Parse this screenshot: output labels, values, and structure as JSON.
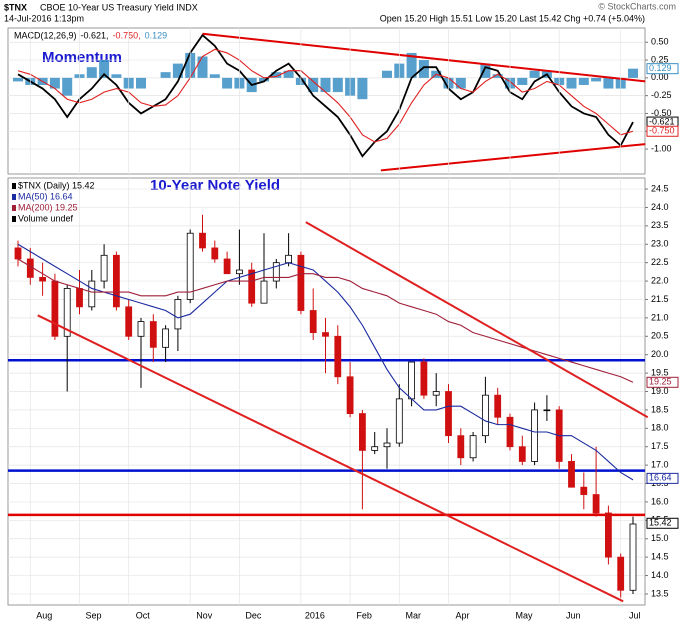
{
  "header": {
    "symbol": "$TNX",
    "name": "CBOE 10-Year US Treasury Yield INDX",
    "date": "14-Jul-2016 1:13pm",
    "quote": "Open 15.20 High 15.51 Low 15.20 Last 15.42 Chg +0.74 (+5.04%)",
    "credit": "© StockCharts.com"
  },
  "chart_data": [
    {
      "type": "macd",
      "annotation": "Momentum",
      "legend_text": [
        "MACD(12,26,9)",
        "-0.621,",
        "-0.750,",
        "0.129"
      ],
      "ylim": [
        -1.35,
        0.7
      ],
      "yticks": [
        {
          "value": 0.5,
          "label": "0.50"
        },
        {
          "value": 0.25,
          "label": "0.25"
        },
        {
          "value": 0,
          "label": "0.00"
        },
        {
          "value": -0.25,
          "label": "-0.25"
        },
        {
          "value": -0.5,
          "label": "-0.50"
        },
        {
          "value": -0.75,
          "label": "-0.75"
        },
        {
          "value": -1,
          "label": "-1.00"
        }
      ],
      "grid": true,
      "series": [
        {
          "kind": "line",
          "color": "#000000",
          "values": [
            0.05,
            -0.05,
            -0.15,
            -0.3,
            -0.55,
            -0.3,
            -0.15,
            0.05,
            -0.1,
            -0.35,
            -0.5,
            -0.4,
            -0.3,
            -0.05,
            0.35,
            0.6,
            0.45,
            0.2,
            0.1,
            -0.1,
            -0.05,
            0.1,
            0.2,
            0.0,
            -0.25,
            -0.4,
            -0.55,
            -0.8,
            -1.1,
            -0.9,
            -0.75,
            -0.45,
            0.0,
            0.15,
            0.15,
            -0.15,
            -0.3,
            -0.2,
            0.15,
            0.1,
            -0.2,
            -0.3,
            -0.05,
            0.05,
            -0.2,
            -0.4,
            -0.5,
            -0.55,
            -0.8,
            -0.95,
            -0.621
          ]
        },
        {
          "kind": "line",
          "color": "#e02020",
          "values": [
            0.1,
            0.05,
            -0.05,
            -0.15,
            -0.3,
            -0.35,
            -0.3,
            -0.2,
            -0.15,
            -0.2,
            -0.35,
            -0.4,
            -0.38,
            -0.25,
            0.0,
            0.3,
            0.4,
            0.35,
            0.25,
            0.1,
            0.0,
            0.02,
            0.1,
            0.1,
            -0.05,
            -0.2,
            -0.35,
            -0.55,
            -0.8,
            -0.9,
            -0.85,
            -0.65,
            -0.35,
            -0.1,
            0.05,
            0.0,
            -0.15,
            -0.2,
            -0.05,
            0.05,
            -0.05,
            -0.2,
            -0.15,
            -0.05,
            -0.1,
            -0.25,
            -0.4,
            -0.5,
            -0.65,
            -0.8,
            -0.75
          ]
        },
        {
          "kind": "histogram",
          "color": "#3a8fc4",
          "values": [
            -0.05,
            -0.1,
            -0.1,
            -0.15,
            -0.25,
            0.05,
            0.15,
            0.25,
            0.05,
            -0.15,
            -0.15,
            0.0,
            0.08,
            0.2,
            0.35,
            0.3,
            0.05,
            -0.15,
            -0.15,
            -0.2,
            -0.05,
            0.08,
            0.1,
            -0.1,
            -0.2,
            -0.2,
            -0.2,
            -0.25,
            -0.3,
            0.0,
            0.1,
            0.2,
            0.35,
            0.25,
            0.1,
            -0.15,
            -0.15,
            0.0,
            0.2,
            0.05,
            -0.15,
            -0.1,
            0.1,
            0.1,
            -0.1,
            -0.15,
            -0.1,
            -0.05,
            -0.15,
            -0.15,
            0.129
          ]
        }
      ],
      "trendlines": [
        {
          "x": [
            15,
            51
          ],
          "y": [
            0.62,
            -0.05
          ],
          "color": "#e00000"
        },
        {
          "x": [
            29.5,
            51
          ],
          "y": [
            -1.3,
            -0.93
          ],
          "color": "#e00000"
        }
      ],
      "tags": [
        {
          "label": "0.129",
          "value": 0.129,
          "color": "#3a8fc4"
        },
        {
          "label": "-0.621",
          "value": -0.621,
          "color": "#000000"
        },
        {
          "label": "-0.750",
          "value": -0.75,
          "color": "#e02020"
        }
      ]
    },
    {
      "type": "candlestick",
      "annotation": "10-Year Note Yield",
      "legend": [
        {
          "text": "$TNX (Daily) 15.42",
          "color": "#000000"
        },
        {
          "text": "MA(50) 16.64",
          "color": "#1a2aa0"
        },
        {
          "text": "MA(200) 19.25",
          "color": "#a0203a"
        },
        {
          "text": "Volume undef",
          "color": "#000000"
        }
      ],
      "categories": [
        null,
        "Aug",
        null,
        null,
        null,
        "Sep",
        null,
        null,
        null,
        "Oct",
        null,
        null,
        null,
        null,
        "Nov",
        null,
        null,
        null,
        "Dec",
        null,
        null,
        null,
        null,
        "2016",
        null,
        null,
        null,
        "Feb",
        null,
        null,
        null,
        "Mar",
        null,
        null,
        null,
        "Apr",
        null,
        null,
        null,
        null,
        "May",
        null,
        null,
        null,
        "Jun",
        null,
        null,
        null,
        null,
        "Jul",
        null
      ],
      "ylim": [
        13.2,
        24.8
      ],
      "yticks": [
        13.5,
        {
          "value": 14,
          "label": "14.0"
        },
        14.5,
        {
          "value": 15,
          "label": "15.0"
        },
        15.5,
        {
          "value": 16,
          "label": "16.0"
        },
        16.5,
        {
          "value": 17,
          "label": "17.0"
        },
        17.5,
        {
          "value": 18,
          "label": "18.0"
        },
        18.5,
        {
          "value": 19,
          "label": "19.0"
        },
        19.5,
        {
          "value": 20,
          "label": "20.0"
        },
        20.5,
        {
          "value": 21,
          "label": "21.0"
        },
        21.5,
        {
          "value": 22,
          "label": "22.0"
        },
        22.5,
        {
          "value": 23,
          "label": "23.0"
        },
        23.5,
        {
          "value": 24,
          "label": "24.0"
        },
        24.5
      ],
      "grid": true,
      "ohlc": {
        "open": [
          22.9,
          22.6,
          22.1,
          22.0,
          20.5,
          21.8,
          21.3,
          22.0,
          22.7,
          21.3,
          20.5,
          20.9,
          20.2,
          20.7,
          21.5,
          23.3,
          22.9,
          22.6,
          22.2,
          22.3,
          21.4,
          22.0,
          22.5,
          22.7,
          21.2,
          20.6,
          20.5,
          19.4,
          18.4,
          17.4,
          17.5,
          17.6,
          18.8,
          19.8,
          18.9,
          19.0,
          17.8,
          17.2,
          17.8,
          18.9,
          18.3,
          17.5,
          17.1,
          18.5,
          18.5,
          17.1,
          16.4,
          16.2,
          15.7,
          14.5,
          13.6
        ],
        "high": [
          23.1,
          22.9,
          22.5,
          22.2,
          21.9,
          22.3,
          22.3,
          23.0,
          22.8,
          21.5,
          21.0,
          21.1,
          20.8,
          21.6,
          23.4,
          23.8,
          23.1,
          22.8,
          23.4,
          22.5,
          23.3,
          22.6,
          23.3,
          22.8,
          21.8,
          21.0,
          20.8,
          19.8,
          18.5,
          17.9,
          18.0,
          19.2,
          19.8,
          19.9,
          19.5,
          19.2,
          18.0,
          17.9,
          19.4,
          19.1,
          18.4,
          17.8,
          18.7,
          18.9,
          18.6,
          17.3,
          16.8,
          17.5,
          15.9,
          14.6,
          15.6
        ],
        "low": [
          22.4,
          21.9,
          21.6,
          20.4,
          19.0,
          21.1,
          21.2,
          21.8,
          21.2,
          20.4,
          19.1,
          19.8,
          19.8,
          20.1,
          21.4,
          22.8,
          22.5,
          22.2,
          21.9,
          21.3,
          21.4,
          21.8,
          22.4,
          21.1,
          20.4,
          19.5,
          19.2,
          18.3,
          15.8,
          17.3,
          16.9,
          17.5,
          18.6,
          18.8,
          18.6,
          17.6,
          17.0,
          17.1,
          17.6,
          18.1,
          17.4,
          17.0,
          17.0,
          18.2,
          16.9,
          16.4,
          15.8,
          15.6,
          14.3,
          13.4,
          13.5
        ],
        "close": [
          22.6,
          22.1,
          22.0,
          20.5,
          21.8,
          21.3,
          22.0,
          22.7,
          21.3,
          20.5,
          20.9,
          20.2,
          20.7,
          21.5,
          23.3,
          22.9,
          22.6,
          22.2,
          22.3,
          21.4,
          22.0,
          22.5,
          22.7,
          21.2,
          20.6,
          20.5,
          19.4,
          18.4,
          17.4,
          17.5,
          17.6,
          18.8,
          19.8,
          18.9,
          19.0,
          17.8,
          17.2,
          17.8,
          18.9,
          18.3,
          17.5,
          17.1,
          18.5,
          18.5,
          17.1,
          16.4,
          16.2,
          15.7,
          14.5,
          13.6,
          15.4
        ]
      },
      "series": [
        {
          "kind": "line",
          "color": "#1a2aa0",
          "values": [
            23.0,
            22.8,
            22.6,
            22.4,
            22.2,
            22.0,
            21.8,
            21.7,
            21.6,
            21.5,
            21.4,
            21.3,
            21.2,
            21.0,
            21.1,
            21.4,
            21.7,
            22.0,
            22.1,
            22.2,
            22.3,
            22.4,
            22.5,
            22.4,
            22.3,
            22.0,
            21.7,
            21.3,
            20.8,
            20.2,
            19.6,
            19.1,
            18.8,
            18.5,
            18.5,
            18.6,
            18.6,
            18.4,
            18.2,
            18.1,
            18.1,
            18.0,
            17.9,
            17.9,
            17.8,
            17.8,
            17.6,
            17.4,
            17.1,
            16.8,
            16.6
          ]
        },
        {
          "kind": "line",
          "color": "#a0203a",
          "values": [
            22.6,
            22.4,
            22.2,
            22.0,
            21.9,
            21.8,
            21.7,
            21.7,
            21.7,
            21.7,
            21.6,
            21.6,
            21.6,
            21.7,
            21.7,
            21.8,
            21.9,
            22.0,
            22.0,
            22.0,
            22.1,
            22.1,
            22.1,
            22.2,
            22.2,
            22.1,
            22.1,
            22.0,
            21.8,
            21.7,
            21.6,
            21.4,
            21.3,
            21.2,
            21.1,
            20.9,
            20.8,
            20.6,
            20.5,
            20.4,
            20.3,
            20.2,
            20.1,
            20.0,
            19.9,
            19.8,
            19.7,
            19.6,
            19.5,
            19.4,
            19.25
          ]
        }
      ],
      "hlines": [
        {
          "value": 19.85,
          "color": "#0010d0"
        },
        {
          "value": 16.85,
          "color": "#0010d0"
        },
        {
          "value": 15.65,
          "color": "#e00000"
        }
      ],
      "trendlines": [
        {
          "x": [
            23.4,
            51.2
          ],
          "y": [
            23.6,
            18.3
          ],
          "color": "#e02020"
        },
        {
          "x": [
            1.6,
            49.2
          ],
          "y": [
            21.07,
            13.3
          ],
          "color": "#e02020"
        }
      ],
      "tags": [
        {
          "label": "19.25",
          "value": 19.25,
          "color": "#a0203a"
        },
        {
          "label": "16.64",
          "value": 16.64,
          "color": "#1a2aa0"
        },
        {
          "label": "15.42",
          "value": 15.42,
          "color": "#000000"
        }
      ]
    }
  ]
}
